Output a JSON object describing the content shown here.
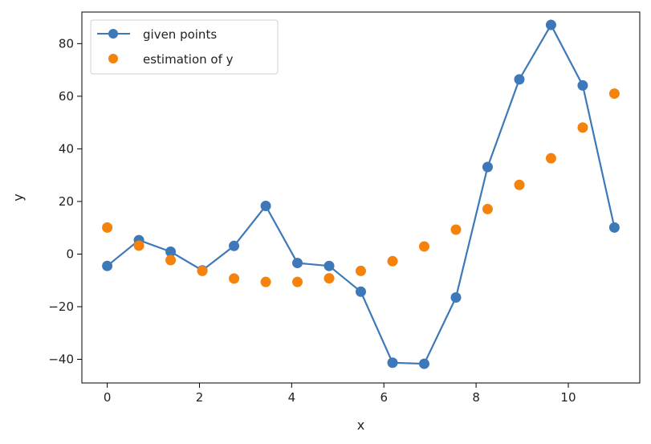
{
  "chart_data": {
    "type": "line",
    "xlabel": "x",
    "ylabel": "y",
    "xlim": [
      -0.55,
      11.55
    ],
    "ylim": [
      -49,
      92
    ],
    "x_ticks": [
      0,
      2,
      4,
      6,
      8,
      10
    ],
    "y_ticks": [
      -40,
      -20,
      0,
      20,
      40,
      60,
      80
    ],
    "grid": false,
    "legend_position": "top-left",
    "series": [
      {
        "name": "given points",
        "style": "line+markers",
        "color": "#3d78b8",
        "x": [
          0,
          0.688,
          1.375,
          2.063,
          2.75,
          3.438,
          4.125,
          4.813,
          5.5,
          6.188,
          6.875,
          7.563,
          8.25,
          8.938,
          9.625,
          10.313,
          11
        ],
        "y": [
          -4.5,
          5.3,
          0.9,
          -6.2,
          3.1,
          18.3,
          -3.4,
          -4.5,
          -14.3,
          -41.3,
          -41.7,
          -16.5,
          33.1,
          66.4,
          87.1,
          64.1,
          10.1
        ]
      },
      {
        "name": "estimation of y",
        "style": "markers",
        "color": "#f5820d",
        "x": [
          0,
          0.688,
          1.375,
          2.063,
          2.75,
          3.438,
          4.125,
          4.813,
          5.5,
          6.188,
          6.875,
          7.563,
          8.25,
          8.938,
          9.625,
          10.313,
          11
        ],
        "y": [
          10.1,
          3.2,
          -2.3,
          -6.4,
          -9.3,
          -10.6,
          -10.6,
          -9.2,
          -6.4,
          -2.7,
          2.9,
          9.3,
          17.1,
          26.3,
          36.4,
          48.1,
          61.0
        ]
      }
    ]
  }
}
